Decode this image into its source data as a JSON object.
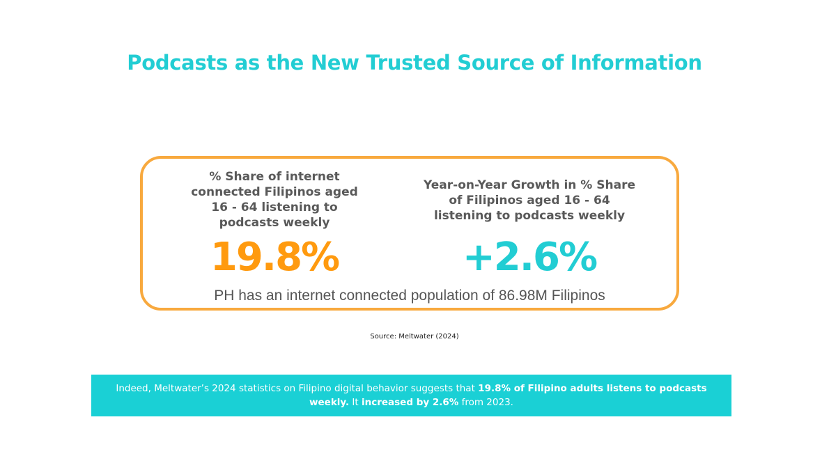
{
  "title": "Podcasts as the New Trusted Source of Information",
  "stats": {
    "left_label": "% Share of internet connected Filipinos aged 16 - 64 listening to podcasts weekly",
    "left_value": "19.8%",
    "right_label": "Year-on-Year Growth in % Share of Filipinos aged 16 - 64 listening to podcasts weekly",
    "right_value": "+2.6%",
    "footnote": "PH has an internet connected population of 86.98M Filipinos"
  },
  "source": "Source: Meltwater (2024)",
  "banner": {
    "part1": "Indeed, Meltwater’s 2024 statistics on Filipino digital behavior suggests that ",
    "bold1": "19.8% of Filipino adults listens to podcasts weekly.",
    "part2": " It ",
    "bold2": "increased by 2.6%",
    "part3": " from 2023."
  },
  "colors": {
    "teal": "#22cdd3",
    "orange": "#ff9a0f",
    "border_orange": "#f8a93e",
    "banner_bg": "#1ad0d5",
    "gray_text": "#595959"
  }
}
